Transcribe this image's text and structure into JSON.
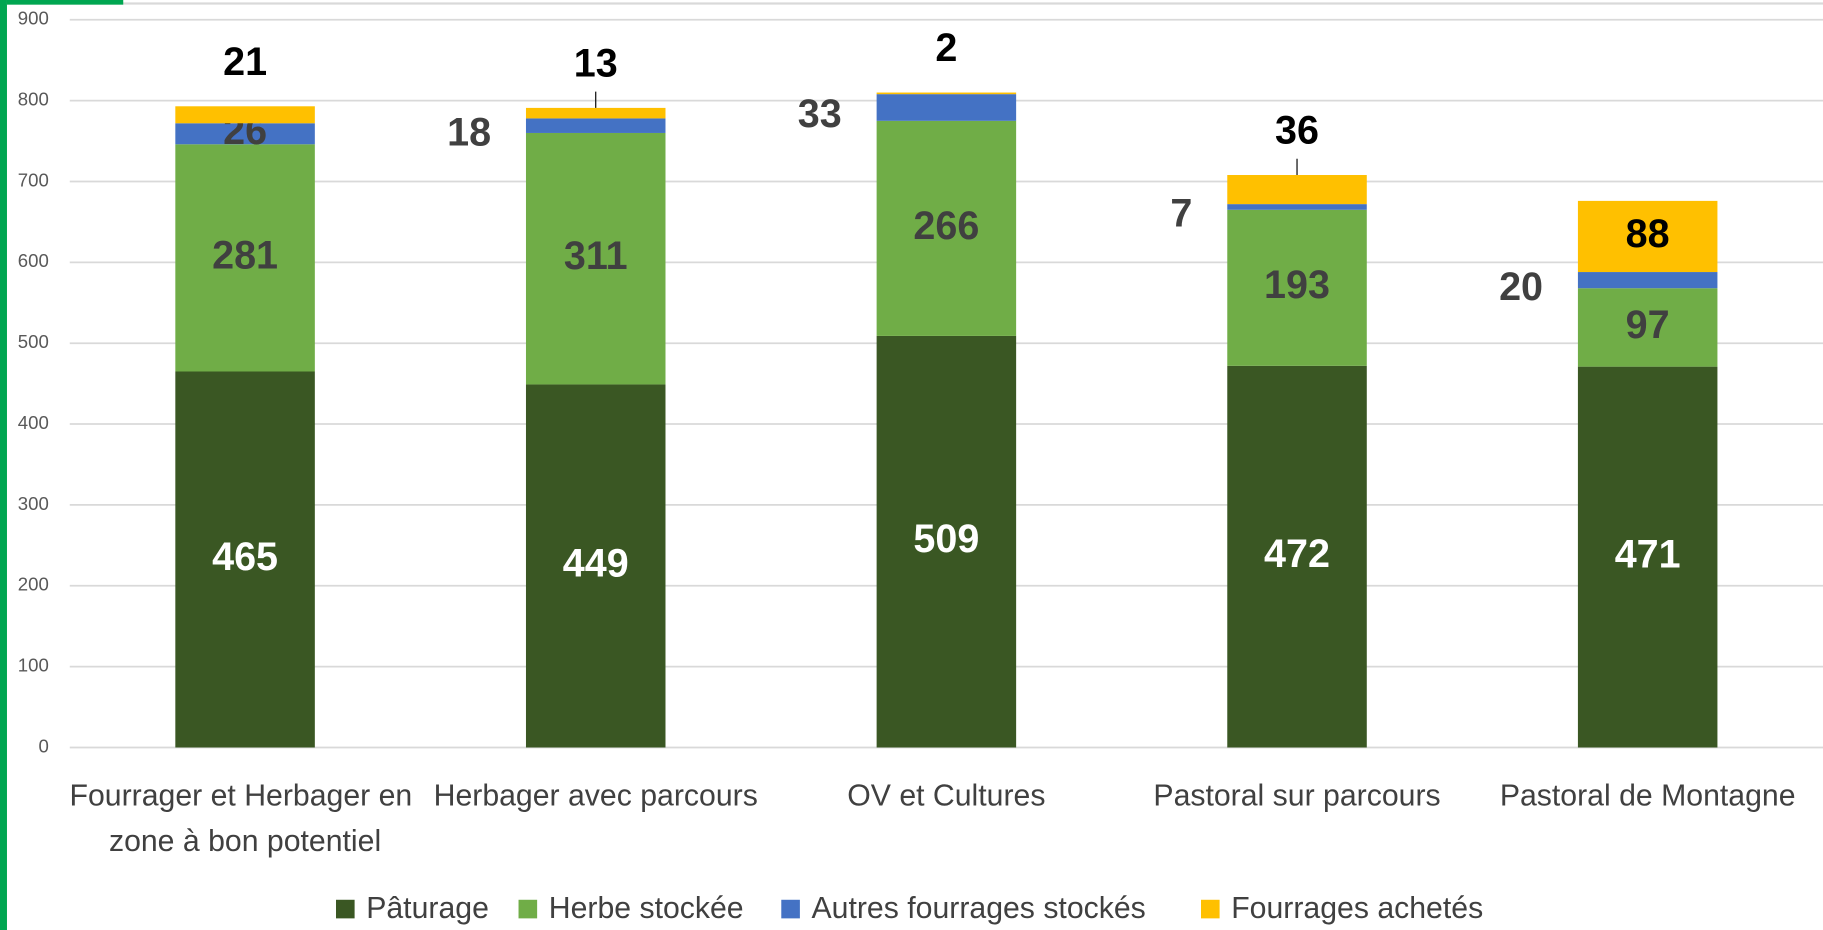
{
  "chart_data": {
    "type": "stacked_bar",
    "categories": [
      "Fourrager et Herbager en zone à bon potentiel",
      "Herbager avec parcours",
      "OV et Cultures",
      "Pastoral sur parcours",
      "Pastoral de Montagne"
    ],
    "series": [
      {
        "name": "Pâturage",
        "color": "#3a5723",
        "values": [
          465,
          449,
          509,
          472,
          471
        ]
      },
      {
        "name": "Herbe stockée",
        "color": "#70ad47",
        "values": [
          281,
          311,
          266,
          193,
          97
        ]
      },
      {
        "name": "Autres fourrages stockés",
        "color": "#4472c4",
        "values": [
          26,
          18,
          33,
          7,
          20
        ]
      },
      {
        "name": "Fourrages achetés",
        "color": "#ffc000",
        "values": [
          21,
          13,
          2,
          36,
          88
        ]
      }
    ],
    "ylim": [
      0,
      900
    ],
    "yticks": [
      0,
      100,
      200,
      300,
      400,
      500,
      600,
      700,
      800,
      900
    ],
    "grid": true
  }
}
